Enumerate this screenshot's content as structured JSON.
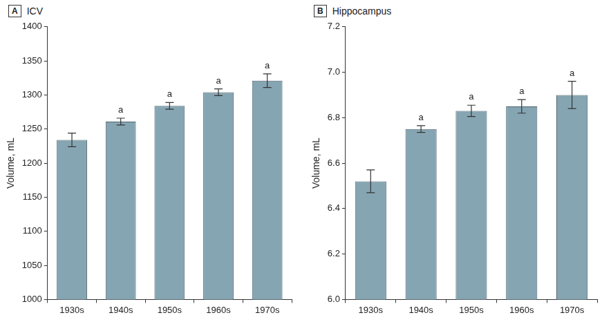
{
  "chart_data": [
    {
      "type": "bar",
      "panel": "A",
      "title": "ICV",
      "y_label": "Volume, mL",
      "categories": [
        "1930s",
        "1940s",
        "1950s",
        "1960s",
        "1970s"
      ],
      "values": [
        1234,
        1261,
        1284,
        1304,
        1321
      ],
      "error": [
        10,
        5,
        5,
        5,
        10
      ],
      "annotations": [
        null,
        "a",
        "a",
        "a",
        "a"
      ],
      "color": "#86a5b3",
      "ylim": [
        1000,
        1400
      ],
      "yticks": [
        1000,
        1050,
        1100,
        1150,
        1200,
        1250,
        1300,
        1350,
        1400
      ],
      "grid": false
    },
    {
      "type": "bar",
      "panel": "B",
      "title": "Hippocampus",
      "y_label": "Volume, mL",
      "categories": [
        "1930s",
        "1940s",
        "1950s",
        "1960s",
        "1970s"
      ],
      "values": [
        6.52,
        6.75,
        6.83,
        6.85,
        6.9
      ],
      "error": [
        0.05,
        0.015,
        0.025,
        0.03,
        0.06
      ],
      "annotations": [
        null,
        "a",
        "a",
        "a",
        "a"
      ],
      "color": "#86a5b3",
      "ylim": [
        6.0,
        7.2
      ],
      "yticks": [
        {
          "value": 6,
          "label": "6.0"
        },
        6.2,
        6.4,
        6.6,
        6.8,
        {
          "value": 7,
          "label": "7.0"
        },
        7.2
      ],
      "grid": false
    }
  ]
}
